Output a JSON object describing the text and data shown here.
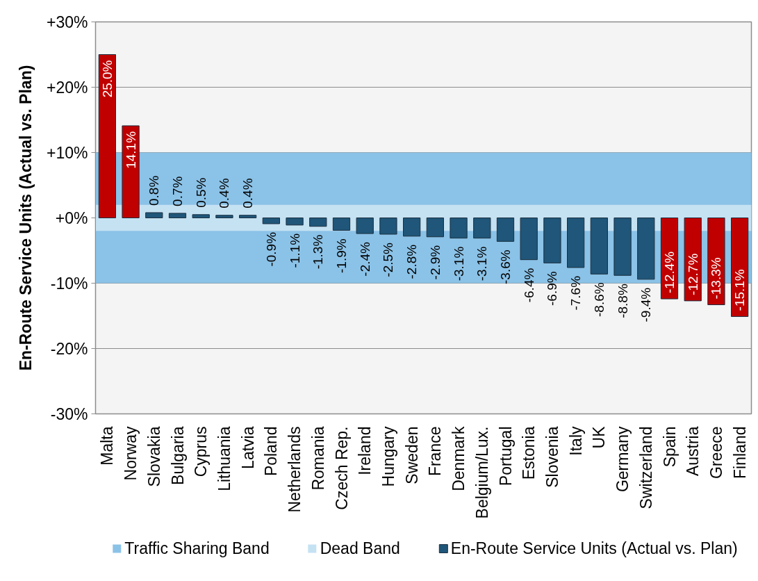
{
  "chart_data": {
    "type": "bar",
    "ylabel": "En-Route Service Units (Actual vs. Plan)",
    "categories": [
      "Malta",
      "Norway",
      "Slovakia",
      "Bulgaria",
      "Cyprus",
      "Lithuania",
      "Latvia",
      "Poland",
      "Netherlands",
      "Romania",
      "Czech Rep.",
      "Ireland",
      "Hungary",
      "Sweden",
      "France",
      "Denmark",
      "Belgium/Lux.",
      "Portugal",
      "Estonia",
      "Slovenia",
      "Italy",
      "UK",
      "Germany",
      "Switzerland",
      "Spain",
      "Austria",
      "Greece",
      "Finland"
    ],
    "series": [
      {
        "name": "En-Route Service Units (Actual vs. Plan)",
        "color": "#1f5679",
        "colors": [
          "#c00000",
          "#c00000",
          "#1f5679",
          "#1f5679",
          "#1f5679",
          "#1f5679",
          "#1f5679",
          "#1f5679",
          "#1f5679",
          "#1f5679",
          "#1f5679",
          "#1f5679",
          "#1f5679",
          "#1f5679",
          "#1f5679",
          "#1f5679",
          "#1f5679",
          "#1f5679",
          "#1f5679",
          "#1f5679",
          "#1f5679",
          "#1f5679",
          "#1f5679",
          "#1f5679",
          "#c00000",
          "#c00000",
          "#c00000",
          "#c00000"
        ],
        "values": [
          25.0,
          14.1,
          0.8,
          0.7,
          0.5,
          0.4,
          0.4,
          -0.9,
          -1.1,
          -1.3,
          -1.9,
          -2.4,
          -2.5,
          -2.8,
          -2.9,
          -3.1,
          -3.1,
          -3.6,
          -6.4,
          -6.9,
          -7.6,
          -8.6,
          -8.8,
          -9.4,
          -12.4,
          -12.7,
          -13.3,
          -15.1
        ],
        "value_labels": [
          "25.0%",
          "14.1%",
          "0.8%",
          "0.7%",
          "0.5%",
          "0.4%",
          "0.4%",
          "-0.9%",
          "-1.1%",
          "-1.3%",
          "-1.9%",
          "-2.4%",
          "-2.5%",
          "-2.8%",
          "-2.9%",
          "-3.1%",
          "-3.1%",
          "-3.6%",
          "-6.4%",
          "-6.9%",
          "-7.6%",
          "-8.6%",
          "-8.8%",
          "-9.4%",
          "-12.4%",
          "-12.7%",
          "-13.3%",
          "-15.1%"
        ]
      }
    ],
    "ylim": [
      -30,
      30
    ],
    "yticks": [
      {
        "value": -30,
        "label": "-30%"
      },
      {
        "value": -20,
        "label": "-20%"
      },
      {
        "value": -10,
        "label": "-10%"
      },
      {
        "value": 0,
        "label": "+0%"
      },
      {
        "value": 10,
        "label": "+10%"
      },
      {
        "value": 20,
        "label": "+20%"
      },
      {
        "value": 30,
        "label": "+30%"
      }
    ],
    "bands": [
      {
        "axis": "y",
        "from": -10,
        "to": 10,
        "label": "Traffic Sharing Band",
        "color": "#8bc2e7"
      },
      {
        "axis": "y",
        "from": -2,
        "to": 2,
        "label": "Dead Band",
        "color": "#c5e2f3"
      }
    ],
    "grid": "y",
    "legend": "bottom"
  }
}
